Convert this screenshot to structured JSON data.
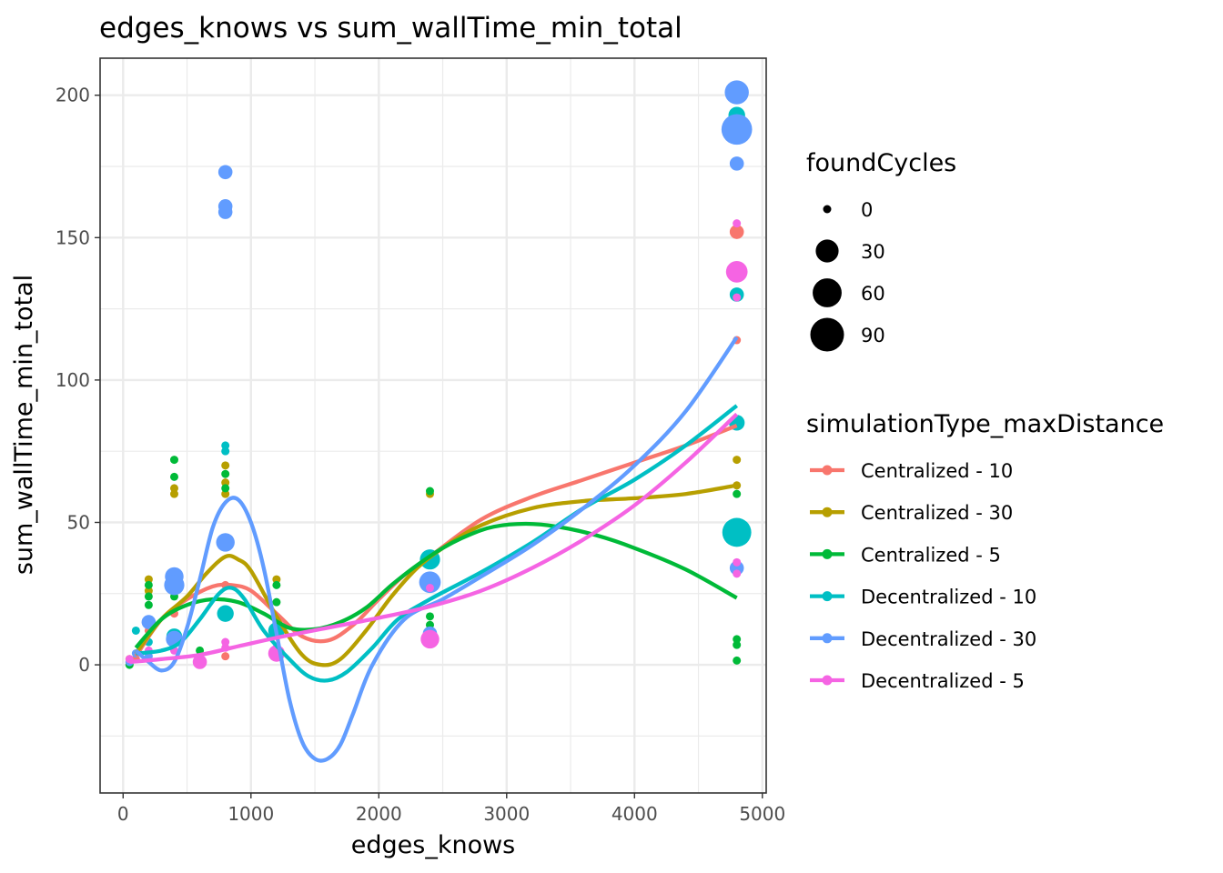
{
  "chart_data": {
    "type": "scatter",
    "title": "edges_knows  vs  sum_wallTime_min_total",
    "xlabel": "edges_knows",
    "ylabel": "sum_wallTime_min_total",
    "xlim": [
      -180,
      5030
    ],
    "ylim": [
      -45,
      213
    ],
    "x_ticks": [
      0,
      1000,
      2000,
      3000,
      4000,
      5000
    ],
    "x_tick_labels": [
      "0",
      "1000",
      "2000",
      "3000",
      "4000",
      "5000"
    ],
    "y_ticks": [
      0,
      50,
      100,
      150,
      200
    ],
    "y_tick_labels": [
      "0",
      "50",
      "100",
      "150",
      "200"
    ],
    "grid": true,
    "legend_placement": "right",
    "size_legend": {
      "title": "foundCycles",
      "entries": [
        {
          "label": "0",
          "value": 0
        },
        {
          "label": "30",
          "value": 30
        },
        {
          "label": "60",
          "value": 60
        },
        {
          "label": "90",
          "value": 90
        }
      ]
    },
    "color_legend": {
      "title": "simulationType_maxDistance"
    },
    "series": [
      {
        "name": "Centralized - 10",
        "color": "#F8766D",
        "points": [
          {
            "x": 50,
            "y": 1,
            "s": 0
          },
          {
            "x": 100,
            "y": 2,
            "s": 0
          },
          {
            "x": 200,
            "y": 12,
            "s": 0
          },
          {
            "x": 400,
            "y": 18,
            "s": 0
          },
          {
            "x": 600,
            "y": 2,
            "s": 0
          },
          {
            "x": 800,
            "y": 3,
            "s": 0
          },
          {
            "x": 800,
            "y": 28,
            "s": 0
          },
          {
            "x": 1200,
            "y": 5,
            "s": 0
          },
          {
            "x": 2400,
            "y": 10,
            "s": 0
          },
          {
            "x": 4800,
            "y": 152,
            "s": 5
          },
          {
            "x": 4800,
            "y": 114,
            "s": 0
          }
        ],
        "smooth": [
          {
            "x": 100,
            "y": 3
          },
          {
            "x": 300,
            "y": 16
          },
          {
            "x": 500,
            "y": 23
          },
          {
            "x": 700,
            "y": 27.5
          },
          {
            "x": 850,
            "y": 28
          },
          {
            "x": 1000,
            "y": 26
          },
          {
            "x": 1200,
            "y": 18
          },
          {
            "x": 1400,
            "y": 10
          },
          {
            "x": 1600,
            "y": 8.5
          },
          {
            "x": 1800,
            "y": 14
          },
          {
            "x": 2000,
            "y": 23
          },
          {
            "x": 2200,
            "y": 31.5
          },
          {
            "x": 2400,
            "y": 38
          },
          {
            "x": 2800,
            "y": 51
          },
          {
            "x": 3200,
            "y": 59
          },
          {
            "x": 3600,
            "y": 65
          },
          {
            "x": 4000,
            "y": 71
          },
          {
            "x": 4400,
            "y": 77
          },
          {
            "x": 4800,
            "y": 84
          }
        ]
      },
      {
        "name": "Centralized - 30",
        "color": "#B79F00",
        "points": [
          {
            "x": 50,
            "y": 2,
            "s": 0
          },
          {
            "x": 200,
            "y": 30,
            "s": 0
          },
          {
            "x": 200,
            "y": 26,
            "s": 0
          },
          {
            "x": 400,
            "y": 62,
            "s": 0
          },
          {
            "x": 400,
            "y": 60,
            "s": 0
          },
          {
            "x": 800,
            "y": 70,
            "s": 0
          },
          {
            "x": 800,
            "y": 64,
            "s": 0
          },
          {
            "x": 800,
            "y": 60,
            "s": 0
          },
          {
            "x": 1200,
            "y": 30,
            "s": 0
          },
          {
            "x": 2400,
            "y": 60,
            "s": 0
          },
          {
            "x": 4800,
            "y": 72,
            "s": 0
          },
          {
            "x": 4800,
            "y": 63,
            "s": 0
          }
        ],
        "smooth": [
          {
            "x": 100,
            "y": 4
          },
          {
            "x": 300,
            "y": 16
          },
          {
            "x": 500,
            "y": 24
          },
          {
            "x": 650,
            "y": 32
          },
          {
            "x": 800,
            "y": 38
          },
          {
            "x": 900,
            "y": 37
          },
          {
            "x": 1000,
            "y": 33
          },
          {
            "x": 1200,
            "y": 17
          },
          {
            "x": 1400,
            "y": 3.5
          },
          {
            "x": 1550,
            "y": 0
          },
          {
            "x": 1700,
            "y": 2
          },
          {
            "x": 1900,
            "y": 12
          },
          {
            "x": 2100,
            "y": 24
          },
          {
            "x": 2300,
            "y": 34
          },
          {
            "x": 2500,
            "y": 41
          },
          {
            "x": 2800,
            "y": 49
          },
          {
            "x": 3200,
            "y": 55
          },
          {
            "x": 3600,
            "y": 57.5
          },
          {
            "x": 4000,
            "y": 58.5
          },
          {
            "x": 4400,
            "y": 60
          },
          {
            "x": 4800,
            "y": 63
          }
        ]
      },
      {
        "name": "Centralized - 5",
        "color": "#00BA38",
        "points": [
          {
            "x": 50,
            "y": 0,
            "s": 0
          },
          {
            "x": 200,
            "y": 28,
            "s": 0
          },
          {
            "x": 200,
            "y": 24,
            "s": 0
          },
          {
            "x": 200,
            "y": 21,
            "s": 0
          },
          {
            "x": 400,
            "y": 72,
            "s": 0
          },
          {
            "x": 400,
            "y": 66,
            "s": 0
          },
          {
            "x": 400,
            "y": 24,
            "s": 0
          },
          {
            "x": 600,
            "y": 5,
            "s": 0
          },
          {
            "x": 600,
            "y": 3,
            "s": 0
          },
          {
            "x": 800,
            "y": 67,
            "s": 0
          },
          {
            "x": 800,
            "y": 62,
            "s": 0
          },
          {
            "x": 1200,
            "y": 28,
            "s": 0
          },
          {
            "x": 1200,
            "y": 22,
            "s": 0
          },
          {
            "x": 2400,
            "y": 61,
            "s": 0
          },
          {
            "x": 2400,
            "y": 17,
            "s": 0
          },
          {
            "x": 2400,
            "y": 14,
            "s": 0
          },
          {
            "x": 4800,
            "y": 60,
            "s": 0
          },
          {
            "x": 4800,
            "y": 9,
            "s": 0
          },
          {
            "x": 4800,
            "y": 7,
            "s": 0
          },
          {
            "x": 4800,
            "y": 1.5,
            "s": 0
          }
        ],
        "smooth": [
          {
            "x": 100,
            "y": 6
          },
          {
            "x": 300,
            "y": 16
          },
          {
            "x": 500,
            "y": 21
          },
          {
            "x": 700,
            "y": 23
          },
          {
            "x": 900,
            "y": 22
          },
          {
            "x": 1100,
            "y": 18
          },
          {
            "x": 1300,
            "y": 13
          },
          {
            "x": 1500,
            "y": 12.5
          },
          {
            "x": 1700,
            "y": 15
          },
          {
            "x": 1900,
            "y": 20
          },
          {
            "x": 2100,
            "y": 28
          },
          {
            "x": 2300,
            "y": 35
          },
          {
            "x": 2500,
            "y": 41
          },
          {
            "x": 2700,
            "y": 45.5
          },
          {
            "x": 2900,
            "y": 48.5
          },
          {
            "x": 3150,
            "y": 49.5
          },
          {
            "x": 3400,
            "y": 48.5
          },
          {
            "x": 3700,
            "y": 45.5
          },
          {
            "x": 4000,
            "y": 41
          },
          {
            "x": 4400,
            "y": 33.5
          },
          {
            "x": 4800,
            "y": 23.5
          }
        ]
      },
      {
        "name": "Decentralized - 10",
        "color": "#00BFC4",
        "points": [
          {
            "x": 100,
            "y": 12,
            "s": 0
          },
          {
            "x": 200,
            "y": 8,
            "s": 0
          },
          {
            "x": 400,
            "y": 10,
            "s": 8
          },
          {
            "x": 800,
            "y": 77,
            "s": 0
          },
          {
            "x": 800,
            "y": 75,
            "s": 0
          },
          {
            "x": 800,
            "y": 18,
            "s": 10
          },
          {
            "x": 1200,
            "y": 12,
            "s": 10
          },
          {
            "x": 2400,
            "y": 37,
            "s": 20
          },
          {
            "x": 4800,
            "y": 193,
            "s": 10
          },
          {
            "x": 4800,
            "y": 130,
            "s": 5
          },
          {
            "x": 4800,
            "y": 85,
            "s": 8
          },
          {
            "x": 4800,
            "y": 46.5,
            "s": 60
          }
        ],
        "smooth": [
          {
            "x": 100,
            "y": 4
          },
          {
            "x": 300,
            "y": 5
          },
          {
            "x": 450,
            "y": 8
          },
          {
            "x": 600,
            "y": 16
          },
          {
            "x": 750,
            "y": 25
          },
          {
            "x": 850,
            "y": 27
          },
          {
            "x": 950,
            "y": 23
          },
          {
            "x": 1100,
            "y": 12
          },
          {
            "x": 1300,
            "y": 2
          },
          {
            "x": 1450,
            "y": -4
          },
          {
            "x": 1600,
            "y": -5.5
          },
          {
            "x": 1750,
            "y": -2.5
          },
          {
            "x": 1950,
            "y": 6
          },
          {
            "x": 2150,
            "y": 16
          },
          {
            "x": 2400,
            "y": 23
          },
          {
            "x": 2800,
            "y": 32.5
          },
          {
            "x": 3200,
            "y": 43
          },
          {
            "x": 3600,
            "y": 55
          },
          {
            "x": 4000,
            "y": 65
          },
          {
            "x": 4400,
            "y": 77
          },
          {
            "x": 4800,
            "y": 91
          }
        ]
      },
      {
        "name": "Decentralized - 30",
        "color": "#619CFF",
        "points": [
          {
            "x": 50,
            "y": 1,
            "s": 0
          },
          {
            "x": 100,
            "y": 4,
            "s": 0
          },
          {
            "x": 200,
            "y": 15,
            "s": 5
          },
          {
            "x": 200,
            "y": 3,
            "s": 0
          },
          {
            "x": 400,
            "y": 31,
            "s": 15
          },
          {
            "x": 400,
            "y": 28,
            "s": 20
          },
          {
            "x": 400,
            "y": 9,
            "s": 10
          },
          {
            "x": 600,
            "y": 2,
            "s": 0
          },
          {
            "x": 800,
            "y": 173,
            "s": 5
          },
          {
            "x": 800,
            "y": 161,
            "s": 5
          },
          {
            "x": 800,
            "y": 159,
            "s": 5
          },
          {
            "x": 800,
            "y": 43,
            "s": 15
          },
          {
            "x": 1200,
            "y": 6,
            "s": 0
          },
          {
            "x": 2400,
            "y": 29,
            "s": 25
          },
          {
            "x": 2400,
            "y": 11,
            "s": 5
          },
          {
            "x": 4800,
            "y": 201,
            "s": 35
          },
          {
            "x": 4800,
            "y": 188,
            "s": 70
          },
          {
            "x": 4800,
            "y": 176,
            "s": 5
          },
          {
            "x": 4800,
            "y": 34,
            "s": 5
          }
        ],
        "smooth": [
          {
            "x": 100,
            "y": 5
          },
          {
            "x": 200,
            "y": 1
          },
          {
            "x": 300,
            "y": -2
          },
          {
            "x": 400,
            "y": 1
          },
          {
            "x": 500,
            "y": 13
          },
          {
            "x": 600,
            "y": 30
          },
          {
            "x": 700,
            "y": 48
          },
          {
            "x": 800,
            "y": 57
          },
          {
            "x": 900,
            "y": 58
          },
          {
            "x": 1000,
            "y": 50
          },
          {
            "x": 1100,
            "y": 34
          },
          {
            "x": 1200,
            "y": 11
          },
          {
            "x": 1300,
            "y": -12
          },
          {
            "x": 1400,
            "y": -27
          },
          {
            "x": 1500,
            "y": -33
          },
          {
            "x": 1600,
            "y": -33
          },
          {
            "x": 1700,
            "y": -28
          },
          {
            "x": 1800,
            "y": -17
          },
          {
            "x": 1950,
            "y": 0
          },
          {
            "x": 2200,
            "y": 16
          },
          {
            "x": 2500,
            "y": 23
          },
          {
            "x": 2800,
            "y": 31
          },
          {
            "x": 3200,
            "y": 42
          },
          {
            "x": 3600,
            "y": 55
          },
          {
            "x": 4000,
            "y": 70
          },
          {
            "x": 4400,
            "y": 89
          },
          {
            "x": 4800,
            "y": 115
          }
        ]
      },
      {
        "name": "Decentralized - 5",
        "color": "#F564E3",
        "points": [
          {
            "x": 50,
            "y": 2,
            "s": 0
          },
          {
            "x": 200,
            "y": 5,
            "s": 0
          },
          {
            "x": 400,
            "y": 5,
            "s": 0
          },
          {
            "x": 600,
            "y": 1,
            "s": 5
          },
          {
            "x": 800,
            "y": 8,
            "s": 0
          },
          {
            "x": 800,
            "y": 6,
            "s": 0
          },
          {
            "x": 1200,
            "y": 4,
            "s": 10
          },
          {
            "x": 2400,
            "y": 27,
            "s": 0
          },
          {
            "x": 2400,
            "y": 9,
            "s": 15
          },
          {
            "x": 4800,
            "y": 155,
            "s": 0
          },
          {
            "x": 4800,
            "y": 138,
            "s": 25
          },
          {
            "x": 4800,
            "y": 129,
            "s": 0
          },
          {
            "x": 4800,
            "y": 36,
            "s": 0
          },
          {
            "x": 4800,
            "y": 32,
            "s": 0
          }
        ],
        "smooth": [
          {
            "x": 50,
            "y": 1
          },
          {
            "x": 300,
            "y": 2
          },
          {
            "x": 600,
            "y": 3.5
          },
          {
            "x": 900,
            "y": 6.5
          },
          {
            "x": 1200,
            "y": 9.5
          },
          {
            "x": 1600,
            "y": 13
          },
          {
            "x": 2000,
            "y": 16.5
          },
          {
            "x": 2400,
            "y": 20.5
          },
          {
            "x": 2800,
            "y": 26
          },
          {
            "x": 3200,
            "y": 34
          },
          {
            "x": 3600,
            "y": 44
          },
          {
            "x": 4000,
            "y": 56
          },
          {
            "x": 4400,
            "y": 71
          },
          {
            "x": 4800,
            "y": 88
          }
        ]
      }
    ]
  }
}
